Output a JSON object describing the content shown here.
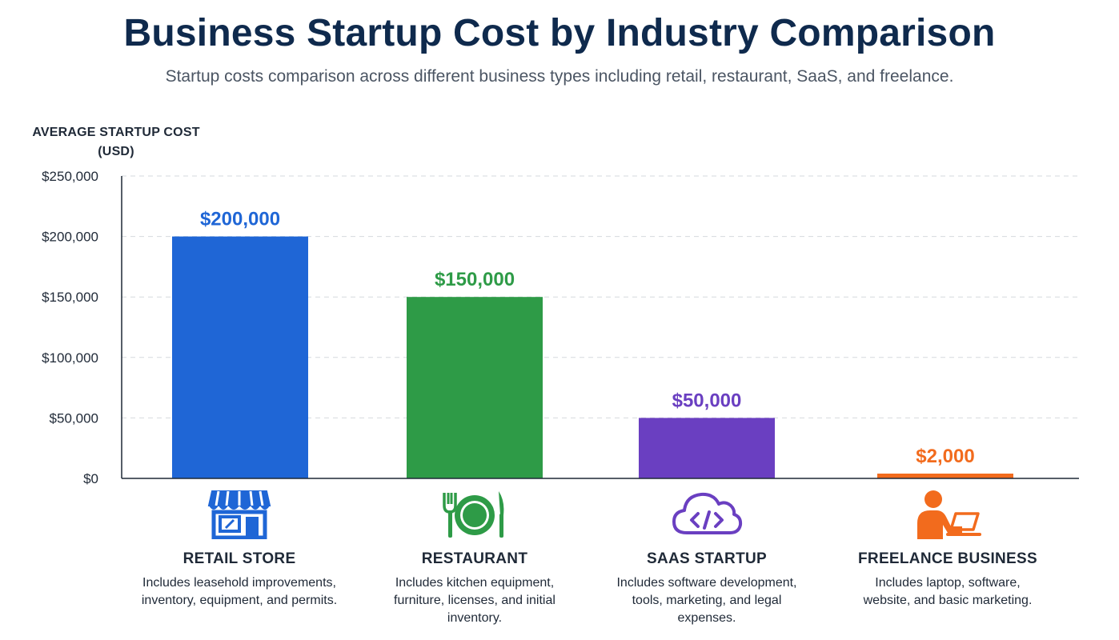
{
  "chart_data": {
    "type": "bar",
    "title": "Business Startup Cost by Industry Comparison",
    "subtitle": "Startup costs comparison across different business types including retail, restaurant, SaaS, and freelance.",
    "ylabel": "AVERAGE STARTUP COST (USD)",
    "xlabel": "",
    "ylim": [
      0,
      250000
    ],
    "yticks": [
      0,
      50000,
      100000,
      150000,
      200000,
      250000
    ],
    "ytick_labels": [
      "$0",
      "$50,000",
      "$100,000",
      "$150,000",
      "$200,000",
      "$250,000"
    ],
    "grid": true,
    "categories": [
      "RETAIL STORE",
      "RESTAURANT",
      "SAAS STARTUP",
      "FREELANCE BUSINESS"
    ],
    "values": [
      200000,
      150000,
      50000,
      2000
    ],
    "value_labels": [
      "$200,000",
      "$150,000",
      "$50,000",
      "$2,000"
    ],
    "colors": [
      "#1f66d6",
      "#2e9b47",
      "#6a3fc1",
      "#f26b1d"
    ],
    "descriptions": [
      "Includes leasehold improvements, inventory, equipment, and permits.",
      "Includes kitchen equipment, furniture, licenses, and initial inventory.",
      "Includes software development, tools, marketing, and legal expenses.",
      "Includes laptop, software, website, and basic marketing."
    ],
    "icons": [
      "storefront-icon",
      "dining-plate-icon",
      "cloud-code-icon",
      "freelancer-laptop-icon"
    ]
  }
}
